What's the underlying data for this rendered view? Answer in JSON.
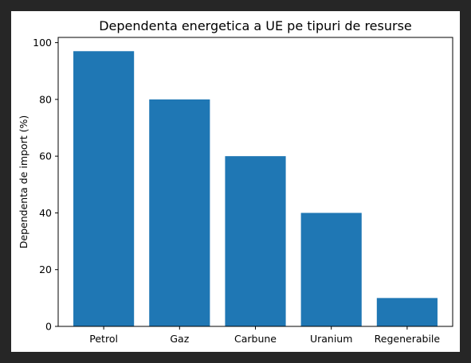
{
  "chart_data": {
    "type": "bar",
    "title": "Dependenta energetica a UE pe tipuri de resurse",
    "xlabel": "",
    "ylabel": "Dependenta de import (%)",
    "categories": [
      "Petrol",
      "Gaz",
      "Carbune",
      "Uranium",
      "Regenerabile"
    ],
    "values": [
      97,
      80,
      60,
      40,
      10
    ],
    "ylim": [
      0,
      101.85
    ],
    "yticks": [
      0,
      20,
      40,
      60,
      80,
      100
    ],
    "bar_color": "#1f77b4",
    "grid": false,
    "legend": "none"
  }
}
